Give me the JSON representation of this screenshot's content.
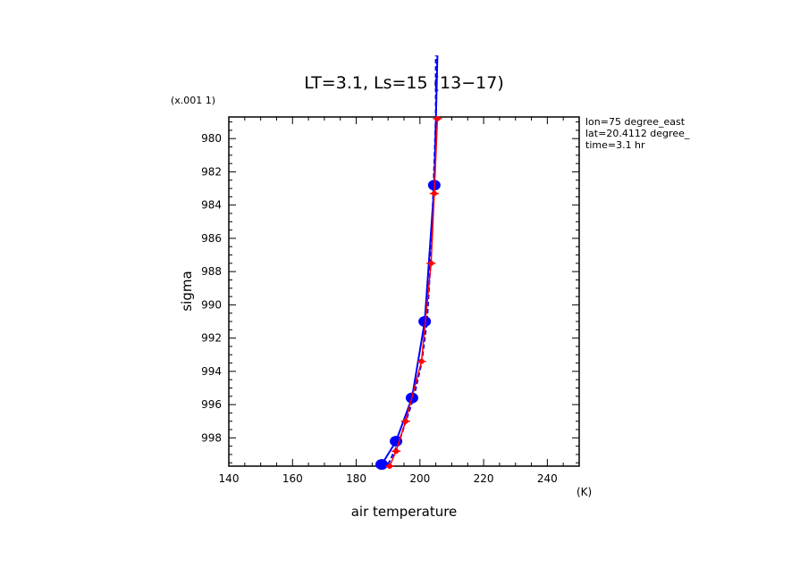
{
  "chart_data": {
    "type": "line",
    "title": "LT=3.1, Ls=15 (13−17)",
    "xlabel": "air temperature",
    "x_unit": "(K)",
    "ylabel": "sigma",
    "y_scale_note": "(x.001 1)",
    "xlim": [
      140,
      250
    ],
    "ylim": [
      999.7,
      978.7
    ],
    "y_inverted": true,
    "x_ticks": [
      140,
      160,
      180,
      200,
      220,
      240
    ],
    "y_ticks": [
      980,
      982,
      984,
      986,
      988,
      990,
      992,
      994,
      996,
      998
    ],
    "annotations": [
      "lon=75 degree_east",
      "lat=20.4112 degree_",
      "time=3.1 hr"
    ],
    "colors": {
      "blue": "#0000ff",
      "red": "#ff0000"
    },
    "series": [
      {
        "style": "solid-blue-markers",
        "points": [
          {
            "x": 188,
            "y": 999.6
          },
          {
            "x": 192.5,
            "y": 998.2
          },
          {
            "x": 197.5,
            "y": 995.6
          },
          {
            "x": 201.5,
            "y": 991.0
          },
          {
            "x": 204.5,
            "y": 982.8
          },
          {
            "x": 205.5,
            "y": 975.0
          }
        ]
      },
      {
        "style": "dashed-blue",
        "points": [
          {
            "x": 190,
            "y": 999.6
          },
          {
            "x": 193.5,
            "y": 998.2
          },
          {
            "x": 198,
            "y": 995.6
          },
          {
            "x": 200.5,
            "y": 993.5
          },
          {
            "x": 202.2,
            "y": 991.0
          },
          {
            "x": 203.3,
            "y": 987.5
          },
          {
            "x": 204.2,
            "y": 983.3
          },
          {
            "x": 205.0,
            "y": 978.8
          },
          {
            "x": 205.0,
            "y": 975.0
          }
        ]
      },
      {
        "style": "solid-red-markers",
        "points": [
          {
            "x": 190.5,
            "y": 999.7
          },
          {
            "x": 192.5,
            "y": 998.8
          },
          {
            "x": 195.5,
            "y": 997.0
          },
          {
            "x": 200.5,
            "y": 993.4
          },
          {
            "x": 203.5,
            "y": 987.5
          },
          {
            "x": 204.5,
            "y": 983.3
          },
          {
            "x": 205.5,
            "y": 978.8
          }
        ]
      }
    ]
  }
}
